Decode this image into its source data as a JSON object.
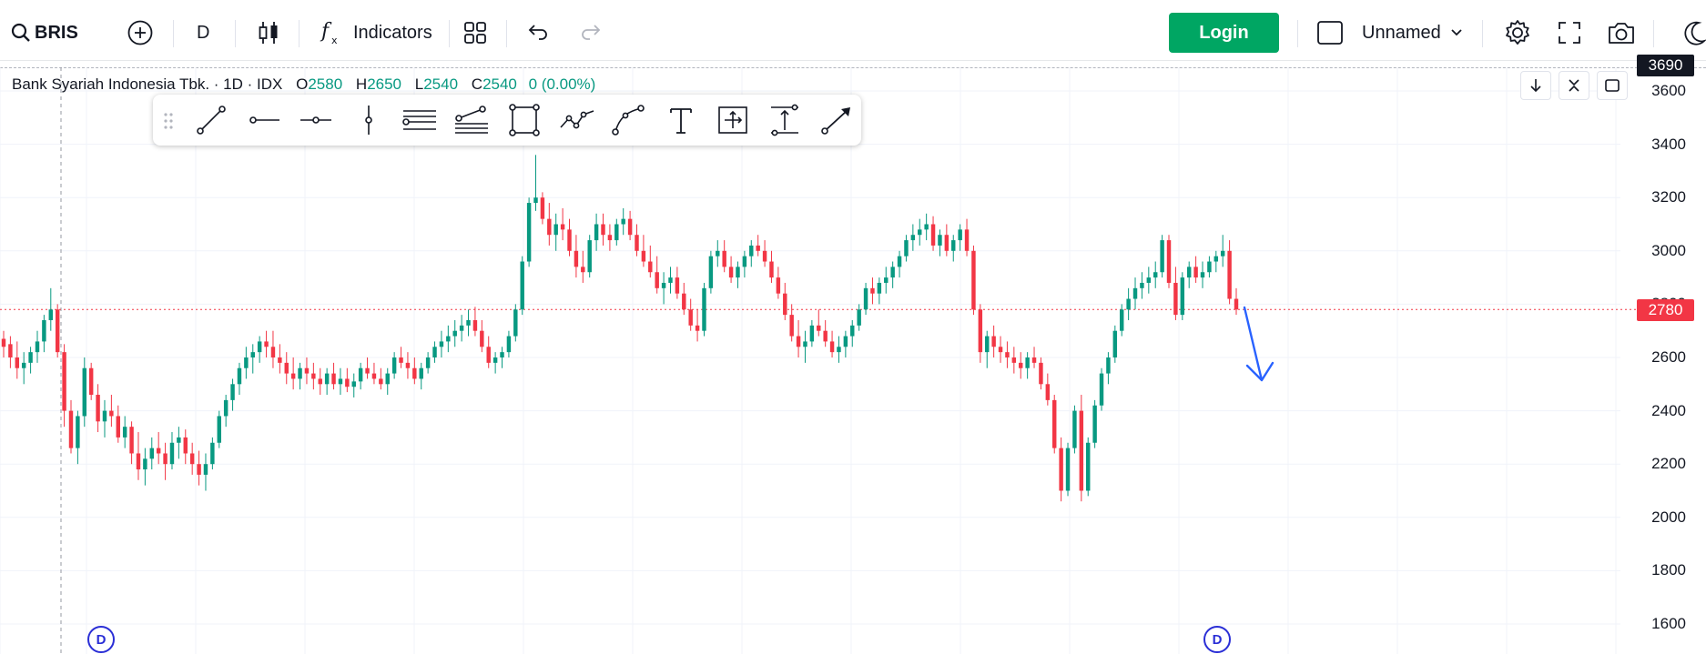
{
  "toolbar": {
    "symbol": "BRIS",
    "interval": "D",
    "indicators_label": "Indicators",
    "login_label": "Login",
    "layout_name": "Unnamed"
  },
  "legend": {
    "name": "Bank Syariah Indonesia Tbk.",
    "interval": "1D",
    "exchange": "IDX",
    "o_key": "O",
    "o": "2580",
    "h_key": "H",
    "h": "2650",
    "l_key": "L",
    "l": "2540",
    "c_key": "C",
    "c": "2540",
    "change": "0 (0.00%)"
  },
  "price_axis": {
    "labels": [
      "3600",
      "3400",
      "3200",
      "3000",
      "2800",
      "2600",
      "2400",
      "2200",
      "2000",
      "1800",
      "1600"
    ],
    "crosshair_price": "3690",
    "last_price": "2780"
  },
  "markers": {
    "left": "D",
    "right": "D"
  },
  "colors": {
    "up": "#089981",
    "down": "#f23645",
    "accent": "#00a663",
    "arrow": "#2962ff"
  },
  "drawing_tools": [
    "trend-line",
    "horizontal-ray",
    "horizontal-line",
    "vertical-line",
    "parallel-channel",
    "fib-retracement",
    "rectangle",
    "path",
    "curve",
    "text",
    "measure",
    "price-range",
    "brush"
  ],
  "chart_data": {
    "type": "candlestick",
    "ylim": [
      1600,
      3690
    ],
    "ohlc": [
      [
        2670,
        2700,
        2600,
        2640
      ],
      [
        2650,
        2680,
        2560,
        2600
      ],
      [
        2600,
        2660,
        2520,
        2560
      ],
      [
        2560,
        2620,
        2500,
        2580
      ],
      [
        2580,
        2640,
        2540,
        2620
      ],
      [
        2620,
        2700,
        2580,
        2660
      ],
      [
        2660,
        2760,
        2620,
        2740
      ],
      [
        2740,
        2860,
        2700,
        2780
      ],
      [
        2780,
        2800,
        2600,
        2620
      ],
      [
        2620,
        2650,
        2340,
        2400
      ],
      [
        2400,
        2440,
        2240,
        2260
      ],
      [
        2260,
        2400,
        2200,
        2380
      ],
      [
        2380,
        2600,
        2340,
        2560
      ],
      [
        2560,
        2580,
        2440,
        2460
      ],
      [
        2460,
        2500,
        2320,
        2360
      ],
      [
        2360,
        2440,
        2300,
        2400
      ],
      [
        2400,
        2460,
        2340,
        2380
      ],
      [
        2380,
        2420,
        2280,
        2300
      ],
      [
        2300,
        2380,
        2260,
        2340
      ],
      [
        2340,
        2360,
        2200,
        2240
      ],
      [
        2240,
        2320,
        2140,
        2180
      ],
      [
        2180,
        2260,
        2120,
        2220
      ],
      [
        2220,
        2300,
        2180,
        2260
      ],
      [
        2260,
        2320,
        2200,
        2240
      ],
      [
        2240,
        2280,
        2140,
        2200
      ],
      [
        2200,
        2320,
        2180,
        2280
      ],
      [
        2280,
        2340,
        2220,
        2300
      ],
      [
        2300,
        2330,
        2200,
        2240
      ],
      [
        2240,
        2280,
        2160,
        2200
      ],
      [
        2200,
        2250,
        2120,
        2160
      ],
      [
        2160,
        2240,
        2100,
        2200
      ],
      [
        2200,
        2300,
        2180,
        2280
      ],
      [
        2280,
        2400,
        2260,
        2380
      ],
      [
        2380,
        2460,
        2340,
        2440
      ],
      [
        2440,
        2520,
        2400,
        2500
      ],
      [
        2500,
        2580,
        2460,
        2560
      ],
      [
        2560,
        2640,
        2520,
        2600
      ],
      [
        2600,
        2650,
        2540,
        2620
      ],
      [
        2620,
        2680,
        2580,
        2660
      ],
      [
        2660,
        2700,
        2600,
        2640
      ],
      [
        2640,
        2700,
        2560,
        2600
      ],
      [
        2600,
        2650,
        2540,
        2580
      ],
      [
        2580,
        2620,
        2500,
        2540
      ],
      [
        2540,
        2600,
        2480,
        2520
      ],
      [
        2520,
        2580,
        2480,
        2560
      ],
      [
        2560,
        2600,
        2500,
        2540
      ],
      [
        2540,
        2580,
        2480,
        2520
      ],
      [
        2520,
        2560,
        2460,
        2500
      ],
      [
        2500,
        2560,
        2460,
        2540
      ],
      [
        2540,
        2580,
        2480,
        2500
      ],
      [
        2500,
        2560,
        2460,
        2520
      ],
      [
        2520,
        2560,
        2470,
        2490
      ],
      [
        2490,
        2540,
        2450,
        2510
      ],
      [
        2510,
        2580,
        2480,
        2560
      ],
      [
        2560,
        2600,
        2520,
        2540
      ],
      [
        2540,
        2580,
        2500,
        2520
      ],
      [
        2520,
        2560,
        2480,
        2500
      ],
      [
        2500,
        2560,
        2460,
        2540
      ],
      [
        2540,
        2620,
        2520,
        2600
      ],
      [
        2600,
        2640,
        2560,
        2580
      ],
      [
        2580,
        2620,
        2520,
        2560
      ],
      [
        2560,
        2600,
        2500,
        2520
      ],
      [
        2520,
        2580,
        2480,
        2560
      ],
      [
        2560,
        2620,
        2540,
        2600
      ],
      [
        2600,
        2660,
        2580,
        2640
      ],
      [
        2640,
        2700,
        2600,
        2660
      ],
      [
        2660,
        2720,
        2620,
        2680
      ],
      [
        2680,
        2740,
        2640,
        2700
      ],
      [
        2700,
        2760,
        2660,
        2720
      ],
      [
        2720,
        2780,
        2680,
        2740
      ],
      [
        2740,
        2790,
        2680,
        2700
      ],
      [
        2700,
        2740,
        2620,
        2640
      ],
      [
        2640,
        2680,
        2560,
        2580
      ],
      [
        2580,
        2620,
        2540,
        2600
      ],
      [
        2600,
        2640,
        2560,
        2620
      ],
      [
        2620,
        2700,
        2600,
        2680
      ],
      [
        2680,
        2800,
        2660,
        2780
      ],
      [
        2780,
        2980,
        2760,
        2960
      ],
      [
        2960,
        3200,
        2940,
        3180
      ],
      [
        3180,
        3360,
        3150,
        3200
      ],
      [
        3200,
        3220,
        3100,
        3120
      ],
      [
        3120,
        3180,
        3020,
        3060
      ],
      [
        3060,
        3140,
        3000,
        3100
      ],
      [
        3100,
        3160,
        3040,
        3080
      ],
      [
        3080,
        3120,
        2980,
        3000
      ],
      [
        3000,
        3060,
        2900,
        2940
      ],
      [
        2940,
        3000,
        2880,
        2920
      ],
      [
        2920,
        3060,
        2900,
        3040
      ],
      [
        3040,
        3140,
        3000,
        3100
      ],
      [
        3100,
        3140,
        3020,
        3060
      ],
      [
        3060,
        3100,
        3000,
        3040
      ],
      [
        3040,
        3120,
        3020,
        3100
      ],
      [
        3100,
        3160,
        3060,
        3120
      ],
      [
        3120,
        3150,
        3040,
        3060
      ],
      [
        3060,
        3100,
        2980,
        3000
      ],
      [
        3000,
        3060,
        2940,
        2960
      ],
      [
        2960,
        3020,
        2900,
        2920
      ],
      [
        2920,
        2980,
        2840,
        2860
      ],
      [
        2860,
        2920,
        2800,
        2880
      ],
      [
        2880,
        2940,
        2840,
        2900
      ],
      [
        2900,
        2940,
        2820,
        2840
      ],
      [
        2840,
        2880,
        2760,
        2780
      ],
      [
        2780,
        2820,
        2700,
        2720
      ],
      [
        2720,
        2780,
        2660,
        2700
      ],
      [
        2700,
        2880,
        2680,
        2860
      ],
      [
        2860,
        3000,
        2840,
        2980
      ],
      [
        2980,
        3040,
        2940,
        3000
      ],
      [
        3000,
        3040,
        2920,
        2940
      ],
      [
        2940,
        2980,
        2880,
        2900
      ],
      [
        2900,
        2960,
        2860,
        2940
      ],
      [
        2940,
        3000,
        2900,
        2980
      ],
      [
        2980,
        3040,
        2940,
        3020
      ],
      [
        3020,
        3060,
        2980,
        3000
      ],
      [
        3000,
        3040,
        2940,
        2960
      ],
      [
        2960,
        3000,
        2880,
        2900
      ],
      [
        2900,
        2940,
        2820,
        2840
      ],
      [
        2840,
        2880,
        2740,
        2760
      ],
      [
        2760,
        2800,
        2660,
        2680
      ],
      [
        2680,
        2740,
        2600,
        2640
      ],
      [
        2640,
        2700,
        2580,
        2660
      ],
      [
        2660,
        2740,
        2640,
        2720
      ],
      [
        2720,
        2780,
        2680,
        2700
      ],
      [
        2700,
        2740,
        2640,
        2660
      ],
      [
        2660,
        2700,
        2600,
        2620
      ],
      [
        2620,
        2680,
        2580,
        2640
      ],
      [
        2640,
        2700,
        2600,
        2680
      ],
      [
        2680,
        2740,
        2640,
        2720
      ],
      [
        2720,
        2800,
        2700,
        2780
      ],
      [
        2780,
        2880,
        2760,
        2860
      ],
      [
        2860,
        2900,
        2800,
        2840
      ],
      [
        2840,
        2900,
        2800,
        2880
      ],
      [
        2880,
        2940,
        2840,
        2900
      ],
      [
        2900,
        2960,
        2860,
        2940
      ],
      [
        2940,
        3000,
        2900,
        2980
      ],
      [
        2980,
        3060,
        2960,
        3040
      ],
      [
        3040,
        3100,
        3000,
        3060
      ],
      [
        3060,
        3120,
        3020,
        3080
      ],
      [
        3080,
        3140,
        3040,
        3100
      ],
      [
        3100,
        3130,
        3000,
        3020
      ],
      [
        3020,
        3080,
        2980,
        3060
      ],
      [
        3060,
        3100,
        2980,
        3000
      ],
      [
        3000,
        3060,
        2960,
        3040
      ],
      [
        3040,
        3100,
        3000,
        3080
      ],
      [
        3080,
        3120,
        2980,
        3000
      ],
      [
        3000,
        3020,
        2760,
        2780
      ],
      [
        2780,
        2800,
        2580,
        2620
      ],
      [
        2620,
        2700,
        2560,
        2680
      ],
      [
        2680,
        2720,
        2600,
        2640
      ],
      [
        2640,
        2680,
        2580,
        2620
      ],
      [
        2620,
        2660,
        2560,
        2600
      ],
      [
        2600,
        2640,
        2540,
        2580
      ],
      [
        2580,
        2620,
        2520,
        2560
      ],
      [
        2560,
        2620,
        2520,
        2600
      ],
      [
        2600,
        2640,
        2560,
        2580
      ],
      [
        2580,
        2600,
        2480,
        2500
      ],
      [
        2500,
        2540,
        2420,
        2440
      ],
      [
        2440,
        2460,
        2240,
        2260
      ],
      [
        2260,
        2300,
        2060,
        2100
      ],
      [
        2100,
        2280,
        2080,
        2260
      ],
      [
        2260,
        2420,
        2240,
        2400
      ],
      [
        2400,
        2460,
        2060,
        2100
      ],
      [
        2100,
        2300,
        2080,
        2280
      ],
      [
        2280,
        2440,
        2260,
        2420
      ],
      [
        2420,
        2560,
        2400,
        2540
      ],
      [
        2540,
        2620,
        2500,
        2600
      ],
      [
        2600,
        2720,
        2580,
        2700
      ],
      [
        2700,
        2800,
        2680,
        2780
      ],
      [
        2780,
        2860,
        2740,
        2820
      ],
      [
        2820,
        2900,
        2780,
        2860
      ],
      [
        2860,
        2920,
        2820,
        2880
      ],
      [
        2880,
        2940,
        2840,
        2900
      ],
      [
        2900,
        2960,
        2860,
        2920
      ],
      [
        2920,
        3060,
        2900,
        3040
      ],
      [
        3040,
        3060,
        2860,
        2880
      ],
      [
        2880,
        2940,
        2740,
        2760
      ],
      [
        2760,
        2920,
        2740,
        2900
      ],
      [
        2900,
        2960,
        2860,
        2940
      ],
      [
        2940,
        2980,
        2880,
        2900
      ],
      [
        2900,
        2960,
        2860,
        2920
      ],
      [
        2920,
        2980,
        2900,
        2960
      ],
      [
        2960,
        3000,
        2920,
        2980
      ],
      [
        2980,
        3060,
        2940,
        3000
      ],
      [
        3000,
        3040,
        2800,
        2820
      ],
      [
        2820,
        2860,
        2760,
        2780
      ]
    ],
    "price_line": 2780
  }
}
